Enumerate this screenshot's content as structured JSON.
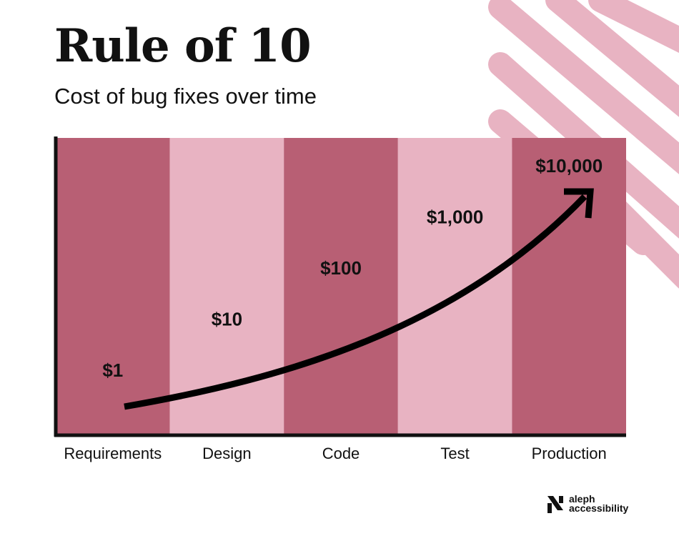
{
  "header": {
    "title": "Rule of 10",
    "subtitle": "Cost of bug fixes over time"
  },
  "colors": {
    "bar_dark": "#b85f74",
    "bar_light": "#e8b3c2",
    "decoration": "#e8b3c2",
    "axis": "#111111",
    "arrow": "#000000"
  },
  "chart_data": {
    "type": "bar",
    "categories": [
      "Requirements",
      "Design",
      "Code",
      "Test",
      "Production"
    ],
    "values": [
      1,
      10,
      100,
      1000,
      10000
    ],
    "value_labels": [
      "$1",
      "$10",
      "$100",
      "$1,000",
      "$10,000"
    ],
    "y_scale": "log",
    "ylim": [
      1,
      10000
    ],
    "grid": false,
    "legend": "none",
    "annotation": "curved arrow rising from Requirements to Production"
  },
  "logo": {
    "line1": "aleph",
    "line2": "accessibility",
    "icon": "aleph-logo-icon"
  }
}
